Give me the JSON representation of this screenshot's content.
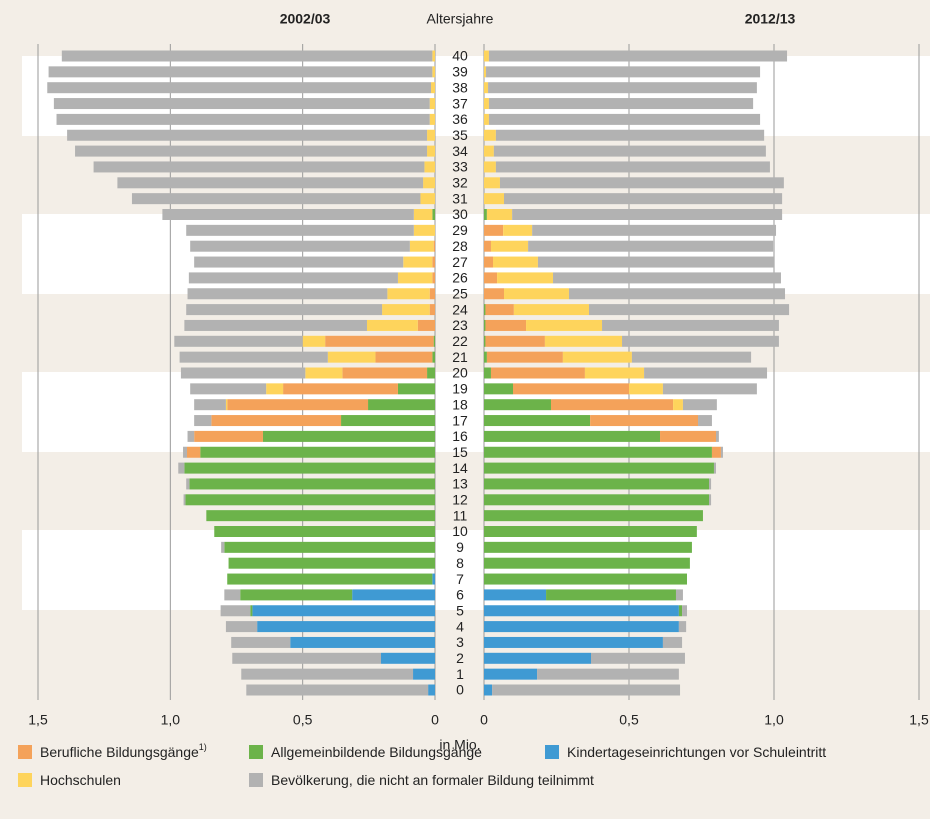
{
  "category_label": "Altersjahre",
  "x_label": "in Mio.",
  "chart_data": [
    {
      "type": "bar",
      "stacked": true,
      "title": "2002/03",
      "categories": [
        "0",
        "1",
        "2",
        "3",
        "4",
        "5",
        "6",
        "7",
        "8",
        "9",
        "10",
        "11",
        "12",
        "13",
        "14",
        "15",
        "16",
        "17",
        "18",
        "19",
        "20",
        "21",
        "22",
        "23",
        "24",
        "25",
        "26",
        "27",
        "28",
        "29",
        "30",
        "31",
        "32",
        "33",
        "34",
        "35",
        "36",
        "37",
        "38",
        "39",
        "40"
      ],
      "xlim": [
        0,
        1.5
      ],
      "xticks": [
        0,
        {
          "value": 0.5,
          "label": "0,5"
        },
        {
          "value": 1,
          "label": "1,0"
        },
        {
          "value": 1.5,
          "label": "1,5"
        }
      ],
      "grid": true,
      "series": [
        {
          "name": "Berufliche Bildungsgänge",
          "note": "1)",
          "color": "#f4a25a",
          "values": [
            0,
            0,
            0,
            0,
            0,
            0,
            0,
            0,
            0,
            0,
            0,
            0,
            0,
            0,
            0,
            0.05,
            0.26,
            0.49,
            0.532,
            0.434,
            0.32,
            0.215,
            0.41,
            0.065,
            0.02,
            0.02,
            0.01,
            0.01,
            0.005,
            0,
            0,
            0,
            0,
            0,
            0,
            0,
            0,
            0,
            0,
            0,
            0
          ]
        },
        {
          "name": "Allgemeinbildende Bildungsgänge",
          "color": "#6cb34a",
          "values": [
            0,
            0,
            0,
            0,
            0,
            0.008,
            0.423,
            0.775,
            0.78,
            0.796,
            0.834,
            0.864,
            0.943,
            0.928,
            0.947,
            0.887,
            0.65,
            0.355,
            0.253,
            0.14,
            0.03,
            0.01,
            0.005,
            0,
            0,
            0,
            0,
            0,
            0,
            0,
            0.01,
            0,
            0,
            0,
            0,
            0,
            0,
            0,
            0,
            0,
            0
          ]
        },
        {
          "name": "Kindertageseinrichtungen vor Schuleintritt",
          "color": "#3f9ad3",
          "values": [
            0.026,
            0.083,
            0.204,
            0.547,
            0.672,
            0.69,
            0.313,
            0.01,
            0,
            0,
            0,
            0,
            0,
            0,
            0,
            0,
            0,
            0,
            0,
            0,
            0,
            0,
            0,
            0,
            0,
            0,
            0,
            0,
            0,
            0,
            0,
            0,
            0,
            0,
            0,
            0,
            0,
            0,
            0,
            0,
            0
          ]
        },
        {
          "name": "Hochschulen",
          "color": "#fed45c",
          "values": [
            0,
            0,
            0,
            0,
            0,
            0,
            0,
            0,
            0,
            0,
            0,
            0,
            0,
            0,
            0,
            0,
            0,
            0,
            0.005,
            0.064,
            0.14,
            0.18,
            0.085,
            0.192,
            0.18,
            0.16,
            0.13,
            0.11,
            0.09,
            0.08,
            0.07,
            0.055,
            0.045,
            0.04,
            0.03,
            0.03,
            0.02,
            0.02,
            0.015,
            0.01,
            0.01
          ]
        },
        {
          "name": "Bevölkerung, die nicht an formaler Bildung teilnimmt",
          "color": "#b2b2b2",
          "values": [
            0.687,
            0.649,
            0.562,
            0.223,
            0.118,
            0.112,
            0.06,
            0,
            0,
            0.012,
            0,
            0,
            0.007,
            0.012,
            0.023,
            0.015,
            0.025,
            0.065,
            0.12,
            0.287,
            0.47,
            0.56,
            0.485,
            0.69,
            0.74,
            0.755,
            0.79,
            0.79,
            0.83,
            0.86,
            0.95,
            1.09,
            1.155,
            1.25,
            1.33,
            1.36,
            1.41,
            1.42,
            1.45,
            1.45,
            1.4
          ]
        }
      ]
    },
    {
      "type": "bar",
      "stacked": true,
      "title": "2012/13",
      "xlim": [
        0,
        1.5
      ],
      "xticks": [
        0,
        {
          "value": 0.5,
          "label": "0,5"
        },
        {
          "value": 1,
          "label": "1,0"
        },
        {
          "value": 1.5,
          "label": "1,5"
        }
      ],
      "grid": true,
      "series": [
        {
          "values": [
            0,
            0,
            0,
            0,
            0,
            0,
            0,
            0,
            0,
            0,
            0,
            0,
            0,
            0,
            0,
            0.031,
            0.193,
            0.372,
            0.421,
            0.4,
            0.324,
            0.262,
            0.205,
            0.14,
            0.098,
            0.069,
            0.045,
            0.031,
            0.024,
            0.066,
            0,
            0,
            0,
            0,
            0,
            0,
            0,
            0,
            0,
            0,
            0
          ]
        },
        {
          "values": [
            0,
            0,
            0,
            0,
            0,
            0.011,
            0.448,
            0.7,
            0.71,
            0.717,
            0.734,
            0.755,
            0.776,
            0.776,
            0.793,
            0.786,
            0.607,
            0.366,
            0.231,
            0.1,
            0.024,
            0.01,
            0.005,
            0.005,
            0.005,
            0,
            0,
            0,
            0,
            0,
            0.01,
            0,
            0,
            0,
            0,
            0,
            0,
            0,
            0,
            0,
            0
          ]
        },
        {
          "values": [
            0.028,
            0.183,
            0.369,
            0.617,
            0.672,
            0.672,
            0.214,
            0,
            0,
            0,
            0,
            0,
            0,
            0,
            0,
            0,
            0,
            0,
            0,
            0,
            0,
            0,
            0,
            0,
            0,
            0,
            0,
            0,
            0,
            0,
            0,
            0,
            0,
            0,
            0,
            0,
            0,
            0,
            0,
            0,
            0
          ]
        },
        {
          "values": [
            0,
            0,
            0,
            0,
            0,
            0,
            0,
            0,
            0,
            0,
            0,
            0,
            0,
            0,
            0,
            0,
            0,
            0,
            0.034,
            0.117,
            0.204,
            0.238,
            0.266,
            0.262,
            0.259,
            0.224,
            0.193,
            0.155,
            0.128,
            0.1,
            0.087,
            0.069,
            0.055,
            0.041,
            0.034,
            0.041,
            0.017,
            0.017,
            0.014,
            0.007,
            0.017
          ]
        },
        {
          "values": [
            0.648,
            0.489,
            0.324,
            0.066,
            0.025,
            0.017,
            0.024,
            0,
            0,
            0,
            0,
            0,
            0.007,
            0.007,
            0.007,
            0.007,
            0.01,
            0.048,
            0.117,
            0.324,
            0.424,
            0.411,
            0.541,
            0.61,
            0.69,
            0.745,
            0.786,
            0.814,
            0.845,
            0.841,
            0.931,
            0.959,
            0.979,
            0.945,
            0.938,
            0.925,
            0.935,
            0.911,
            0.927,
            0.945,
            1.028
          ]
        }
      ]
    }
  ]
}
